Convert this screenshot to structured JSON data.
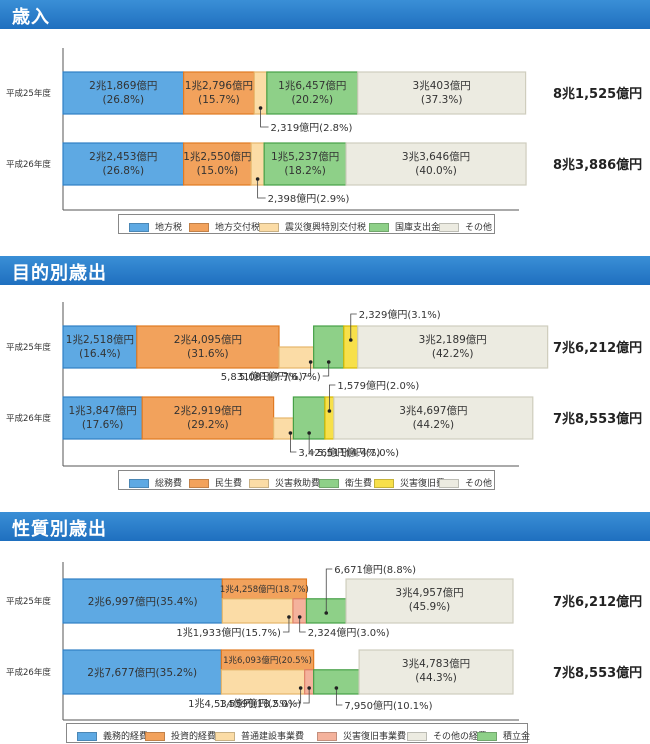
{
  "sections": [
    {
      "title": "歳入",
      "legend": [
        "地方税",
        "地方交付税",
        "震災復興特別交付税",
        "国庫支出金",
        "その他"
      ],
      "totals": [
        "8兆1,525億円",
        "8兆3,886億円"
      ]
    },
    {
      "title": "目的別歳出",
      "legend": [
        "総務費",
        "民生費",
        "災害救助費",
        "衛生費",
        "災害復旧費",
        "その他"
      ],
      "totals": [
        "7兆6,212億円",
        "7兆8,553億円"
      ]
    },
    {
      "title": "性質別歳出",
      "legend": [
        "義務的経費",
        "投資的経費",
        "普通建設事業費",
        "災害復旧事業費",
        "その他の経費",
        "積立金"
      ],
      "totals": [
        "7兆6,212億円",
        "7兆8,553億円"
      ]
    }
  ],
  "colors": {
    "blue": "#5ea9e3",
    "orange": "#f2a25c",
    "lightorange": "#fbdca6",
    "green": "#8ed088",
    "yellow": "#f7e04a",
    "salmon": "#f4b29c",
    "gray": "#ecebe1",
    "header": "#2a7fcc"
  },
  "chart_data": [
    {
      "type": "bar",
      "stacked": "horizontal",
      "title": "歳入",
      "categories": [
        "平成25年度",
        "平成26年度"
      ],
      "series": [
        {
          "name": "地方税",
          "values": [
            26.8,
            26.8
          ],
          "labels": [
            "2兆1,869億円",
            "2兆2,453億円"
          ],
          "pct_labels": [
            "(26.8%)",
            "(26.8%)"
          ]
        },
        {
          "name": "地方交付税",
          "values": [
            15.7,
            15.0
          ],
          "labels": [
            "1兆2,796億円",
            "1兆2,550億円"
          ],
          "pct_labels": [
            "(15.7%)",
            "(15.0%)"
          ]
        },
        {
          "name": "震災復興特別交付税",
          "values": [
            2.8,
            2.9
          ],
          "labels": [
            "2,319億円(2.8%)",
            "2,398億円(2.9%)"
          ]
        },
        {
          "name": "国庫支出金",
          "values": [
            20.2,
            18.2
          ],
          "labels": [
            "1兆6,457億円",
            "1兆5,237億円"
          ],
          "pct_labels": [
            "(20.2%)",
            "(18.2%)"
          ]
        },
        {
          "name": "その他",
          "values": [
            37.3,
            40.0
          ],
          "labels": [
            "3兆403億円",
            "3兆3,646億円"
          ],
          "pct_labels": [
            "(37.3%)",
            "(40.0%)"
          ]
        }
      ],
      "totals": [
        "8兆1,525億円",
        "8兆3,886億円"
      ]
    },
    {
      "type": "bar",
      "stacked": "horizontal",
      "title": "目的別歳出",
      "categories": [
        "平成25年度",
        "平成26年度"
      ],
      "series": [
        {
          "name": "総務費",
          "values": [
            16.4,
            17.6
          ],
          "labels": [
            "1兆2,518億円",
            "1兆3,847億円"
          ],
          "pct_labels": [
            "(16.4%)",
            "(17.6%)"
          ]
        },
        {
          "name": "民生費",
          "values": [
            31.6,
            29.2
          ],
          "labels": [
            "2兆4,095億円",
            "2兆2,919億円"
          ],
          "pct_labels": [
            "(31.6%)",
            "(29.2%)"
          ]
        },
        {
          "name": "災害救助費",
          "values": [
            7.7,
            4.4
          ],
          "labels": [
            "5,831億円(7.7%)",
            "3,426億円(4.4%)"
          ]
        },
        {
          "name": "衛生費",
          "values": [
            6.7,
            7.0
          ],
          "labels": [
            "5,081億円(6.7%)",
            "5,511億円(7.0%)"
          ]
        },
        {
          "name": "災害復旧費",
          "values": [
            3.1,
            2.0
          ],
          "labels": [
            "2,329億円(3.1%)",
            "1,579億円(2.0%)"
          ]
        },
        {
          "name": "その他",
          "values": [
            42.2,
            44.2
          ],
          "labels": [
            "3兆2,189億円",
            "3兆4,697億円"
          ],
          "pct_labels": [
            "(42.2%)",
            "(44.2%)"
          ]
        }
      ],
      "totals": [
        "7兆6,212億円",
        "7兆8,553億円"
      ]
    },
    {
      "type": "bar",
      "stacked": "horizontal",
      "title": "性質別歳出",
      "categories": [
        "平成25年度",
        "平成26年度"
      ],
      "series": [
        {
          "name": "義務的経費",
          "values": [
            35.4,
            35.2
          ],
          "labels": [
            "2兆6,997億円(35.4%)",
            "2兆7,677億円(35.2%)"
          ]
        },
        {
          "name": "投資的経費",
          "values": [
            18.7,
            20.5
          ],
          "labels": [
            "1兆4,258億円(18.7%)",
            "1兆6,093億円(20.5%)"
          ]
        },
        {
          "name": "普通建設事業費",
          "values": [
            15.7,
            18.5
          ],
          "labels": [
            "1兆1,933億円(15.7%)",
            "1兆4,534億円(18.5%)"
          ]
        },
        {
          "name": "災害復旧事業費",
          "values": [
            3.0,
            2.0
          ],
          "labels": [
            "2,324億円(3.0%)",
            "1,559億円(2.0%)"
          ]
        },
        {
          "name": "積立金",
          "values": [
            8.8,
            10.1
          ],
          "labels": [
            "6,671億円(8.8%)",
            "7,950億円(10.1%)"
          ]
        },
        {
          "name": "その他の経費",
          "values": [
            45.9,
            44.3
          ],
          "labels": [
            "3兆4,957億円",
            "3兆4,783億円"
          ],
          "pct_labels": [
            "(45.9%)",
            "(44.3%)"
          ]
        }
      ],
      "totals": [
        "7兆6,212億円",
        "7兆8,553億円"
      ]
    }
  ]
}
